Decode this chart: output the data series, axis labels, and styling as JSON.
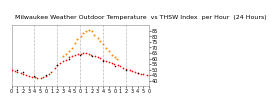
{
  "title": "Milwaukee Weather Outdoor Temperature  vs THSW Index  per Hour  (24 Hours)",
  "bg_color": "#ffffff",
  "plot_bg": "#ffffff",
  "ylim": [
    35,
    90
  ],
  "yticks": [
    40,
    45,
    50,
    55,
    60,
    65,
    70,
    75,
    80,
    85
  ],
  "xlim": [
    0,
    24
  ],
  "vlines": [
    4,
    8,
    12,
    16,
    20
  ],
  "hours": [
    0,
    0.5,
    1,
    1.5,
    2,
    2.5,
    3,
    3.5,
    4,
    4.5,
    5,
    5.5,
    6,
    6.5,
    7,
    7.5,
    8,
    8.5,
    9,
    9.5,
    10,
    10.5,
    11,
    11.5,
    12,
    12.5,
    13,
    13.5,
    14,
    14.5,
    15,
    15.5,
    16,
    16.5,
    17,
    17.5,
    18,
    18.5,
    19,
    19.5,
    20,
    20.5,
    21,
    21.5,
    22,
    22.5,
    23,
    23.5
  ],
  "temp": [
    50,
    49,
    48,
    47,
    46,
    45,
    44,
    44,
    43,
    42,
    42,
    43,
    44,
    46,
    48,
    51,
    54,
    56,
    58,
    59,
    61,
    62,
    63,
    64,
    64,
    65,
    65,
    64,
    63,
    62,
    61,
    60,
    59,
    58,
    57,
    56,
    55,
    54,
    53,
    52,
    51,
    50,
    49,
    48,
    47,
    46,
    46,
    45
  ],
  "thsw": [
    null,
    null,
    null,
    null,
    null,
    null,
    null,
    null,
    null,
    null,
    null,
    null,
    null,
    null,
    null,
    null,
    null,
    null,
    62,
    64,
    67,
    70,
    74,
    77,
    80,
    83,
    85,
    86,
    85,
    82,
    79,
    76,
    73,
    69,
    66,
    63,
    61,
    59,
    null,
    null,
    null,
    null,
    null,
    null,
    null,
    null,
    null,
    null
  ],
  "black_dots_x": [
    1,
    2,
    4,
    6,
    8,
    10,
    12,
    14,
    16,
    18,
    20,
    22
  ],
  "black_dots_y": [
    50,
    48,
    44,
    45,
    54,
    60,
    63,
    62,
    58,
    53,
    50,
    47
  ],
  "temp_color": "#ff0000",
  "thsw_color": "#ff8800",
  "black_color": "#000000",
  "title_fontsize": 4.5,
  "tick_fontsize": 3.5,
  "title_bg": "#c0c0c0"
}
